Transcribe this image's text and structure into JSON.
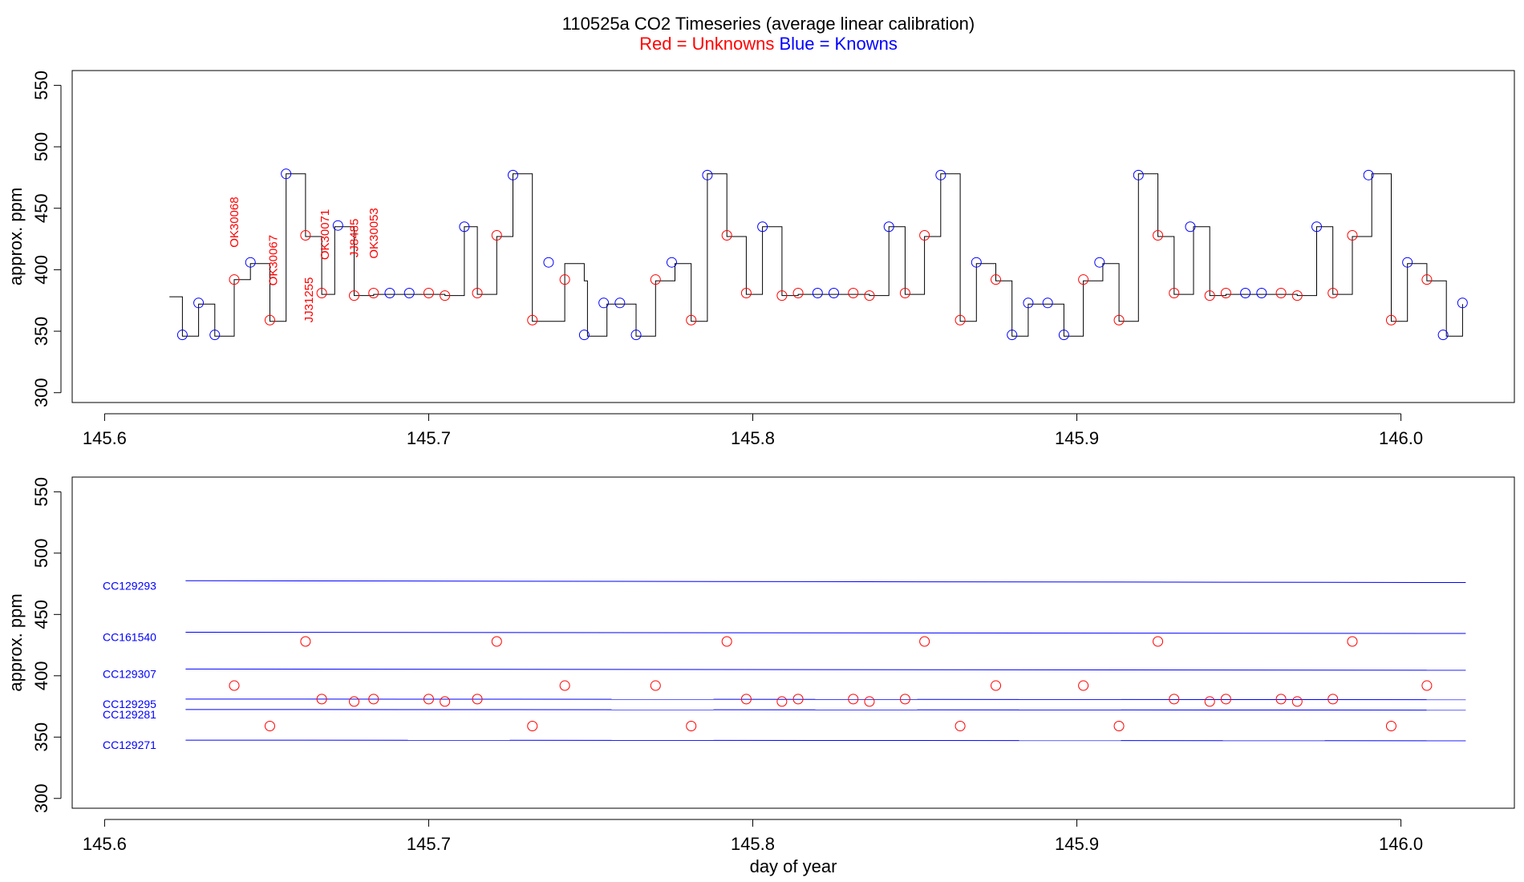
{
  "title": "110525a   CO2 Timeseries (average linear calibration)",
  "subtitle": {
    "unknowns": "Red = Unknowns",
    "knowns": "Blue = Knowns"
  },
  "colors": {
    "unknowns": "#ff0000",
    "knowns": "#0000ff",
    "trace": "#000000"
  },
  "chart_data": [
    {
      "type": "line",
      "panel": "top",
      "ylabel": "approx. ppm",
      "xlabel": "",
      "xlim": [
        145.59,
        146.035
      ],
      "ylim": [
        292,
        562
      ],
      "xticks": [
        145.6,
        145.7,
        145.8,
        145.9,
        146.0
      ],
      "xtick_labels": [
        "145.6",
        "145.7",
        "145.8",
        "145.9",
        "146.0"
      ],
      "yticks": [
        300,
        350,
        400,
        450,
        500,
        550
      ],
      "ytick_labels": [
        "300",
        "350",
        "400",
        "450",
        "500",
        "550"
      ],
      "trace_steps": [
        [
          145.62,
          378
        ],
        [
          145.624,
          346
        ],
        [
          145.629,
          372
        ],
        [
          145.634,
          346
        ],
        [
          145.64,
          392
        ],
        [
          145.645,
          405
        ],
        [
          145.651,
          358
        ],
        [
          145.656,
          478
        ],
        [
          145.662,
          427
        ],
        [
          145.667,
          380
        ],
        [
          145.671,
          435
        ],
        [
          145.677,
          379
        ],
        [
          145.683,
          380
        ],
        [
          145.705,
          379
        ],
        [
          145.711,
          435
        ],
        [
          145.715,
          380
        ],
        [
          145.721,
          427
        ],
        [
          145.726,
          478
        ],
        [
          145.732,
          358
        ],
        [
          145.742,
          405
        ],
        [
          145.748,
          391
        ],
        [
          145.749,
          346
        ],
        [
          145.755,
          372
        ],
        [
          145.764,
          346
        ],
        [
          145.77,
          391
        ],
        [
          145.776,
          405
        ],
        [
          145.781,
          358
        ],
        [
          145.786,
          478
        ],
        [
          145.792,
          427
        ],
        [
          145.798,
          380
        ],
        [
          145.803,
          435
        ],
        [
          145.809,
          379
        ],
        [
          145.814,
          380
        ],
        [
          145.836,
          379
        ],
        [
          145.842,
          435
        ],
        [
          145.847,
          380
        ],
        [
          145.853,
          427
        ],
        [
          145.858,
          478
        ],
        [
          145.864,
          358
        ],
        [
          145.869,
          405
        ],
        [
          145.875,
          391
        ],
        [
          145.88,
          346
        ],
        [
          145.885,
          372
        ],
        [
          145.896,
          346
        ],
        [
          145.902,
          391
        ],
        [
          145.908,
          405
        ],
        [
          145.913,
          358
        ],
        [
          145.919,
          478
        ],
        [
          145.925,
          427
        ],
        [
          145.93,
          380
        ],
        [
          145.936,
          435
        ],
        [
          145.941,
          379
        ],
        [
          145.946,
          380
        ],
        [
          145.968,
          379
        ],
        [
          145.974,
          435
        ],
        [
          145.979,
          380
        ],
        [
          145.985,
          427
        ],
        [
          145.991,
          478
        ],
        [
          145.997,
          358
        ],
        [
          146.002,
          405
        ],
        [
          146.008,
          391
        ],
        [
          146.014,
          346
        ],
        [
          146.019,
          372
        ]
      ],
      "series": [
        {
          "name": "Unknowns",
          "color": "#ff0000",
          "points": [
            [
              145.64,
              392
            ],
            [
              145.651,
              359
            ],
            [
              145.662,
              428
            ],
            [
              145.667,
              381
            ],
            [
              145.677,
              379
            ],
            [
              145.683,
              381
            ],
            [
              145.7,
              381
            ],
            [
              145.705,
              379
            ],
            [
              145.715,
              381
            ],
            [
              145.721,
              428
            ],
            [
              145.732,
              359
            ],
            [
              145.742,
              392
            ],
            [
              145.77,
              392
            ],
            [
              145.781,
              359
            ],
            [
              145.792,
              428
            ],
            [
              145.798,
              381
            ],
            [
              145.809,
              379
            ],
            [
              145.814,
              381
            ],
            [
              145.831,
              381
            ],
            [
              145.836,
              379
            ],
            [
              145.847,
              381
            ],
            [
              145.853,
              428
            ],
            [
              145.864,
              359
            ],
            [
              145.875,
              392
            ],
            [
              145.902,
              392
            ],
            [
              145.913,
              359
            ],
            [
              145.925,
              428
            ],
            [
              145.93,
              381
            ],
            [
              145.941,
              379
            ],
            [
              145.946,
              381
            ],
            [
              145.963,
              381
            ],
            [
              145.968,
              379
            ],
            [
              145.979,
              381
            ],
            [
              145.985,
              428
            ],
            [
              145.997,
              359
            ],
            [
              146.008,
              392
            ]
          ]
        },
        {
          "name": "Knowns",
          "color": "#0000ff",
          "points": [
            [
              145.624,
              347
            ],
            [
              145.629,
              373
            ],
            [
              145.634,
              347
            ],
            [
              145.645,
              406
            ],
            [
              145.656,
              478
            ],
            [
              145.672,
              436
            ],
            [
              145.688,
              381
            ],
            [
              145.694,
              381
            ],
            [
              145.711,
              435
            ],
            [
              145.726,
              477
            ],
            [
              145.737,
              406
            ],
            [
              145.748,
              347
            ],
            [
              145.754,
              373
            ],
            [
              145.759,
              373
            ],
            [
              145.764,
              347
            ],
            [
              145.775,
              406
            ],
            [
              145.786,
              477
            ],
            [
              145.803,
              435
            ],
            [
              145.82,
              381
            ],
            [
              145.825,
              381
            ],
            [
              145.842,
              435
            ],
            [
              145.858,
              477
            ],
            [
              145.869,
              406
            ],
            [
              145.88,
              347
            ],
            [
              145.885,
              373
            ],
            [
              145.891,
              373
            ],
            [
              145.896,
              347
            ],
            [
              145.907,
              406
            ],
            [
              145.919,
              477
            ],
            [
              145.935,
              435
            ],
            [
              145.952,
              381
            ],
            [
              145.957,
              381
            ],
            [
              145.974,
              435
            ],
            [
              145.99,
              477
            ],
            [
              146.002,
              406
            ],
            [
              146.013,
              347
            ],
            [
              146.019,
              373
            ]
          ]
        }
      ],
      "annotations": [
        {
          "text": "OK30068",
          "x": 145.64,
          "y": 418,
          "color": "#ff0000"
        },
        {
          "text": "OK30067",
          "x": 145.652,
          "y": 387,
          "color": "#ff0000"
        },
        {
          "text": "JJ31255",
          "x": 145.663,
          "y": 357,
          "color": "#ff0000"
        },
        {
          "text": "OK30071",
          "x": 145.668,
          "y": 408,
          "color": "#ff0000"
        },
        {
          "text": "JJ8485",
          "x": 145.677,
          "y": 410,
          "color": "#ff0000"
        },
        {
          "text": "OK30053",
          "x": 145.683,
          "y": 409,
          "color": "#ff0000"
        }
      ]
    },
    {
      "type": "scatter",
      "panel": "bottom",
      "ylabel": "approx. ppm",
      "xlabel": "day of year",
      "xlim": [
        145.59,
        146.035
      ],
      "ylim": [
        292,
        562
      ],
      "xticks": [
        145.6,
        145.7,
        145.8,
        145.9,
        146.0
      ],
      "xtick_labels": [
        "145.6",
        "145.7",
        "145.8",
        "145.9",
        "146.0"
      ],
      "yticks": [
        300,
        350,
        400,
        450,
        500,
        550
      ],
      "ytick_labels": [
        "300",
        "350",
        "400",
        "450",
        "500",
        "550"
      ],
      "standards": [
        {
          "name": "CC129293",
          "start": 477.5,
          "end": 476.0
        },
        {
          "name": "CC161540",
          "start": 435.5,
          "end": 434.5
        },
        {
          "name": "CC129307",
          "start": 405.5,
          "end": 404.5
        },
        {
          "name": "CC129295",
          "start": 381.0,
          "end": 380.5
        },
        {
          "name": "CC129281",
          "start": 372.5,
          "end": 372.0
        },
        {
          "name": "CC129271",
          "start": 347.5,
          "end": 347.0
        }
      ],
      "standards_xrange": [
        145.625,
        146.02
      ],
      "series": [
        {
          "name": "Unknowns",
          "color": "#ff0000",
          "points": [
            [
              145.64,
              392
            ],
            [
              145.651,
              359
            ],
            [
              145.662,
              428
            ],
            [
              145.667,
              381
            ],
            [
              145.677,
              379
            ],
            [
              145.683,
              381
            ],
            [
              145.7,
              381
            ],
            [
              145.705,
              379
            ],
            [
              145.715,
              381
            ],
            [
              145.721,
              428
            ],
            [
              145.732,
              359
            ],
            [
              145.742,
              392
            ],
            [
              145.77,
              392
            ],
            [
              145.781,
              359
            ],
            [
              145.792,
              428
            ],
            [
              145.798,
              381
            ],
            [
              145.809,
              379
            ],
            [
              145.814,
              381
            ],
            [
              145.831,
              381
            ],
            [
              145.836,
              379
            ],
            [
              145.847,
              381
            ],
            [
              145.853,
              428
            ],
            [
              145.864,
              359
            ],
            [
              145.875,
              392
            ],
            [
              145.902,
              392
            ],
            [
              145.913,
              359
            ],
            [
              145.925,
              428
            ],
            [
              145.93,
              381
            ],
            [
              145.941,
              379
            ],
            [
              145.946,
              381
            ],
            [
              145.963,
              381
            ],
            [
              145.968,
              379
            ],
            [
              145.979,
              381
            ],
            [
              145.985,
              428
            ],
            [
              145.997,
              359
            ],
            [
              146.008,
              392
            ]
          ]
        }
      ]
    }
  ]
}
